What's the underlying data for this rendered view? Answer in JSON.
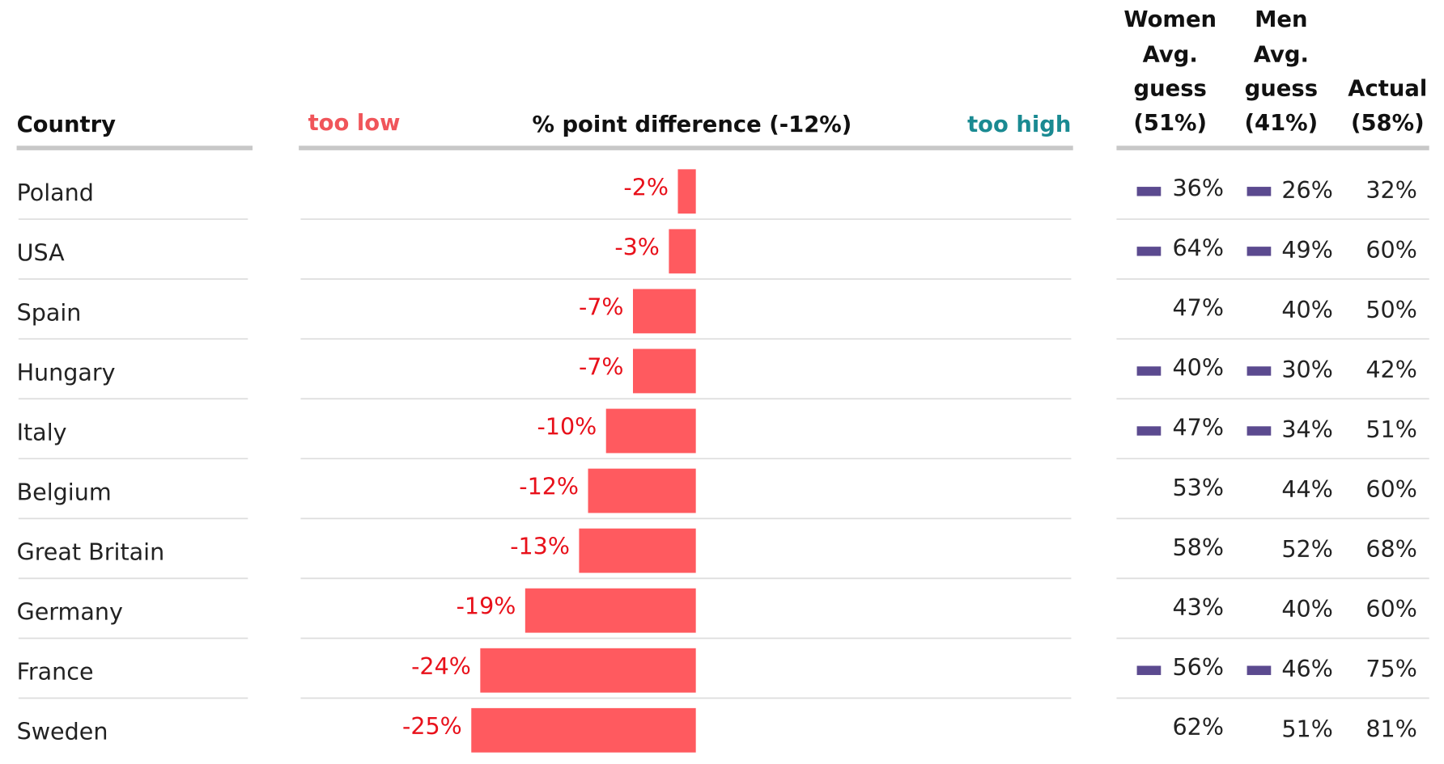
{
  "chart_data": {
    "type": "bar",
    "category_label": "Country",
    "title": "% point difference (-12%)",
    "low_label": "too low",
    "high_label": "too high",
    "categories": [
      "Poland",
      "USA",
      "Spain",
      "Hungary",
      "Italy",
      "Belgium",
      "Great Britain",
      "Germany",
      "France",
      "Sweden"
    ],
    "values": [
      -2,
      -3,
      -7,
      -7,
      -10,
      -12,
      -13,
      -19,
      -24,
      -25
    ],
    "value_labels": [
      "-2%",
      "-3%",
      "-7%",
      "-7%",
      "-10%",
      "-12%",
      "-13%",
      "-19%",
      "-24%",
      "-25%"
    ],
    "color": "#ff5a5f",
    "xlim": [
      -44,
      42
    ]
  },
  "table": {
    "headers": {
      "women": [
        "Women",
        "Avg.",
        "guess",
        "(51%)"
      ],
      "men": [
        "Men",
        "Avg.",
        "guess",
        "(41%)"
      ],
      "actual": [
        "Actual",
        "(58%)"
      ]
    },
    "women": [
      "36%",
      "64%",
      "47%",
      "40%",
      "47%",
      "53%",
      "58%",
      "43%",
      "56%",
      "62%"
    ],
    "men": [
      "26%",
      "49%",
      "40%",
      "30%",
      "34%",
      "44%",
      "52%",
      "40%",
      "46%",
      "51%"
    ],
    "actual": [
      "32%",
      "60%",
      "50%",
      "42%",
      "51%",
      "60%",
      "68%",
      "60%",
      "75%",
      "81%"
    ],
    "markers": [
      true,
      true,
      false,
      true,
      true,
      false,
      false,
      false,
      true,
      false
    ],
    "marker_color": "#5b4a8f"
  }
}
